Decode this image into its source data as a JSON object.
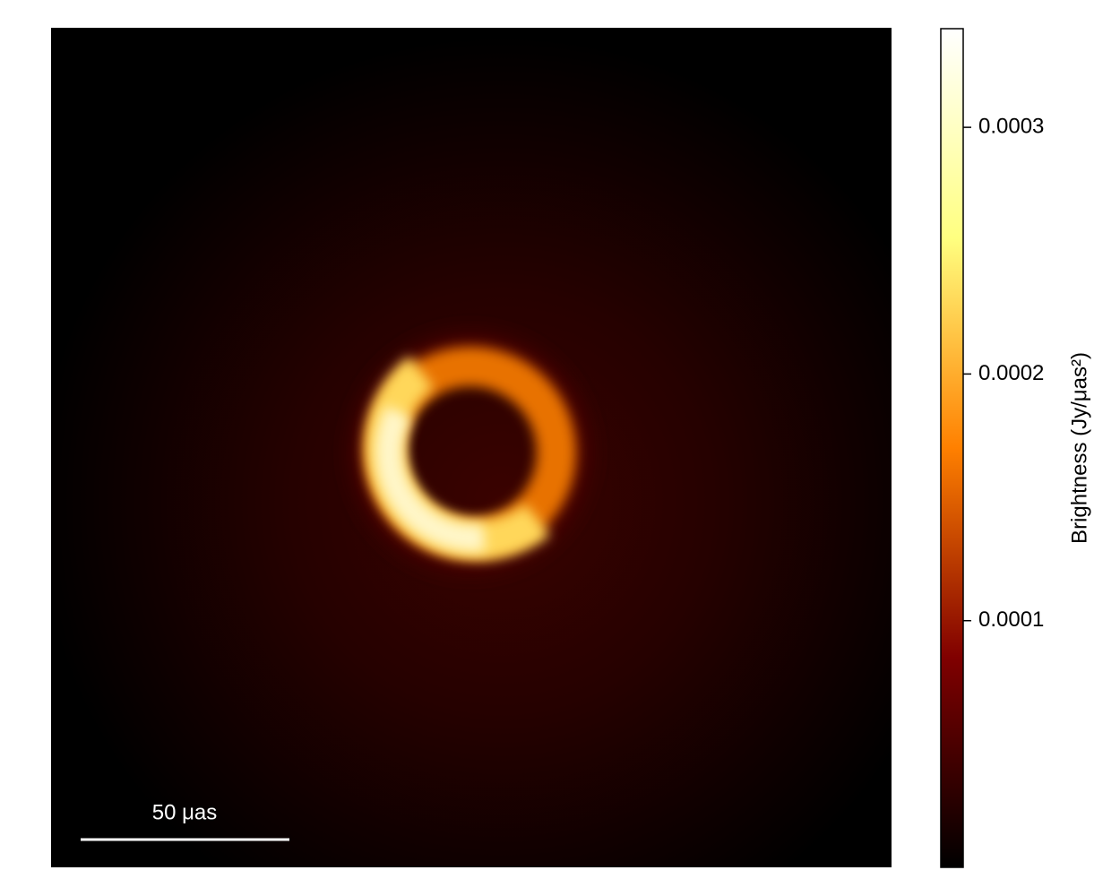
{
  "chart_data": {
    "type": "image",
    "colorbar": {
      "label": "Brightness (Jy/μas²)",
      "lim": [
        0,
        0.00034
      ],
      "ticks": [
        0.0001,
        0.0002,
        0.0003
      ],
      "colormap": "afmhot"
    },
    "scale_bar": {
      "label": "50 μas"
    }
  }
}
